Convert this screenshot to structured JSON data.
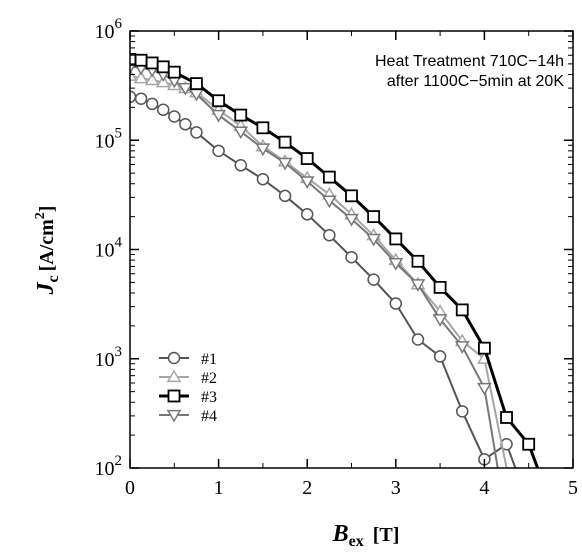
{
  "chart_data": {
    "type": "line",
    "title": "",
    "annotation_lines": [
      "Heat Treatment 710C−14h",
      "after 1100C−5min at 20K"
    ],
    "xlabel": {
      "main": "B",
      "sub": "ex",
      "unit": "[T]"
    },
    "ylabel": {
      "main": "J",
      "sub": "c",
      "unit_prefix": "[A/cm",
      "unit_sup": "2",
      "unit_suffix": "]"
    },
    "xlim": [
      0,
      5
    ],
    "ylim": [
      100,
      1000000
    ],
    "yscale": "log",
    "x_ticks": [
      0,
      1,
      2,
      3,
      4,
      5
    ],
    "x_tick_labels": [
      "0",
      "1",
      "2",
      "3",
      "4",
      "5"
    ],
    "y_ticks": [
      100,
      1000,
      10000,
      100000,
      1000000
    ],
    "y_tick_labels": [
      {
        "base": "10",
        "exp": "2"
      },
      {
        "base": "10",
        "exp": "3"
      },
      {
        "base": "10",
        "exp": "4"
      },
      {
        "base": "10",
        "exp": "5"
      },
      {
        "base": "10",
        "exp": "6"
      }
    ],
    "grid": false,
    "legend_position": "bottom-left",
    "series": [
      {
        "name": "#1",
        "color": "#555555",
        "marker": "circle",
        "line_width": 2,
        "x": [
          0,
          0.125,
          0.25,
          0.375,
          0.5,
          0.625,
          0.75,
          1,
          1.25,
          1.5,
          1.75,
          2,
          2.25,
          2.5,
          2.75,
          3,
          3.25,
          3.5,
          3.75,
          4,
          4.25,
          4.35
        ],
        "y": [
          250000,
          240000,
          215000,
          190000,
          165000,
          140000,
          118000,
          80000,
          59000,
          44000,
          31000,
          21000,
          13500,
          8500,
          5300,
          3200,
          1500,
          1050,
          330,
          120,
          165,
          100
        ]
      },
      {
        "name": "#2",
        "color": "#a6a6a6",
        "marker": "triangle-up",
        "line_width": 2,
        "x": [
          0,
          0.125,
          0.25,
          0.375,
          0.5,
          0.625,
          0.75,
          1,
          1.25,
          1.5,
          1.75,
          2,
          2.25,
          2.5,
          2.75,
          3,
          3.25,
          3.5,
          3.75,
          4,
          4.25
        ],
        "y": [
          390000,
          370000,
          355000,
          340000,
          320000,
          300000,
          275000,
          190000,
          135000,
          88000,
          64000,
          45000,
          32000,
          21000,
          13500,
          8000,
          4800,
          2700,
          1450,
          1000,
          100
        ]
      },
      {
        "name": "#3",
        "color": "#000000",
        "marker": "square",
        "line_width": 3,
        "x": [
          0,
          0.125,
          0.25,
          0.375,
          0.5,
          0.75,
          1,
          1.25,
          1.5,
          1.75,
          2,
          2.25,
          2.5,
          2.75,
          3,
          3.25,
          3.5,
          3.75,
          4,
          4.25,
          4.5,
          4.6
        ],
        "y": [
          550000,
          540000,
          510000,
          470000,
          420000,
          330000,
          230000,
          170000,
          130000,
          96000,
          68000,
          46000,
          31000,
          20000,
          12500,
          7800,
          4500,
          2800,
          1250,
          290,
          165,
          100
        ]
      },
      {
        "name": "#4",
        "color": "#777777",
        "marker": "triangle-down",
        "line_width": 2,
        "x": [
          0,
          0.125,
          0.25,
          0.375,
          0.5,
          0.625,
          0.75,
          1,
          1.25,
          1.5,
          1.75,
          2,
          2.25,
          2.5,
          2.75,
          3,
          3.25,
          3.5,
          3.75,
          4,
          4.15
        ],
        "y": [
          470000,
          460000,
          440000,
          400000,
          350000,
          300000,
          265000,
          170000,
          120000,
          84000,
          62000,
          42000,
          28000,
          19000,
          12500,
          7500,
          4800,
          2300,
          1300,
          540,
          100
        ]
      }
    ]
  }
}
